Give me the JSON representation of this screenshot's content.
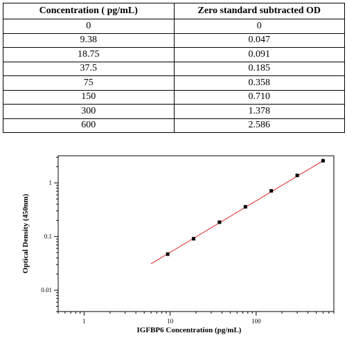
{
  "table": {
    "headers": [
      "Concentration ( pg/mL)",
      "Zero standard subtracted OD"
    ],
    "rows": [
      [
        "0",
        "0"
      ],
      [
        "9.38",
        "0.047"
      ],
      [
        "18.75",
        "0.091"
      ],
      [
        "37.5",
        "0.185"
      ],
      [
        "75",
        "0.358"
      ],
      [
        "150",
        "0.710"
      ],
      [
        "300",
        "1.378"
      ],
      [
        "600",
        "2.586"
      ]
    ]
  },
  "chart_data": {
    "type": "scatter",
    "xlabel": "IGFBP6 Concentration (pg/mL)",
    "ylabel": "Optical Density (450nm)",
    "xscale": "log",
    "yscale": "log",
    "xlim": [
      0.5,
      800
    ],
    "ylim": [
      0.004,
      3.2
    ],
    "xticks": [
      1,
      10,
      100
    ],
    "xtick_labels": [
      "1",
      "10",
      "100"
    ],
    "yticks": [
      0.01,
      0.1,
      1
    ],
    "ytick_labels": [
      "0.01",
      "0.1",
      "1"
    ],
    "grid": false,
    "series": [
      {
        "x": [
          9.38,
          18.75,
          37.5,
          75,
          150,
          300,
          600
        ],
        "y": [
          0.047,
          0.091,
          0.185,
          0.358,
          0.71,
          1.378,
          2.586
        ],
        "marker_color": "#000000"
      }
    ],
    "fit_line": {
      "x": [
        6,
        600
      ],
      "y": [
        0.031,
        2.586
      ],
      "color": "#e02020"
    }
  }
}
